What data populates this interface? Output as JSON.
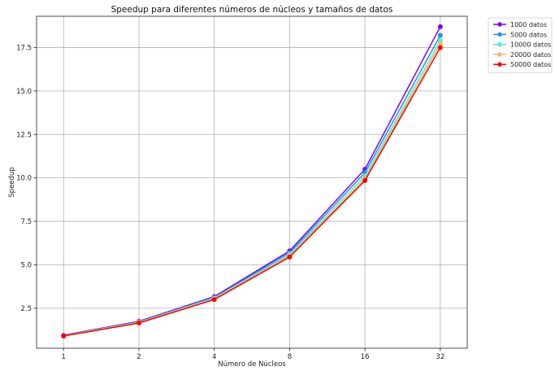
{
  "chart_data": {
    "type": "line",
    "title": "Speedup para diferentes números de núcleos y tamaños de datos",
    "xlabel": "Número de Núcleos",
    "ylabel": "Speedup",
    "x": [
      1,
      2,
      4,
      8,
      16,
      32
    ],
    "x_ticks": [
      "1",
      "2",
      "4",
      "8",
      "16",
      "32"
    ],
    "x_scale": "log2",
    "y_ticks": [
      "2.5",
      "5.0",
      "7.5",
      "10.0",
      "12.5",
      "15.0",
      "17.5"
    ],
    "ylim": [
      0.2,
      19.3
    ],
    "grid": true,
    "legend_position": "outside-top-right",
    "series": [
      {
        "name": "1000 datos",
        "color": "#8000ff",
        "values": [
          0.95,
          1.75,
          3.17,
          5.8,
          10.5,
          18.7
        ]
      },
      {
        "name": "5000 datos",
        "color": "#1996f3",
        "values": [
          0.93,
          1.72,
          3.12,
          5.7,
          10.3,
          18.2
        ]
      },
      {
        "name": "10000 datos",
        "color": "#4df3ce",
        "values": [
          0.92,
          1.7,
          3.08,
          5.6,
          10.1,
          17.9
        ]
      },
      {
        "name": "20000 datos",
        "color": "#ffb360",
        "values": [
          0.91,
          1.68,
          3.04,
          5.52,
          9.95,
          17.7
        ]
      },
      {
        "name": "50000 datos",
        "color": "#ff0000",
        "values": [
          0.9,
          1.65,
          3.0,
          5.45,
          9.85,
          17.5
        ]
      }
    ]
  }
}
